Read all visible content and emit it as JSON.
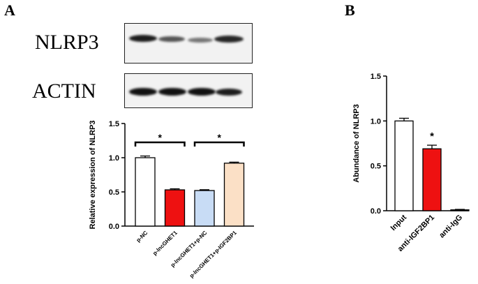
{
  "panels": {
    "a_letter": "A",
    "b_letter": "B"
  },
  "blots": [
    {
      "label": "NLRP3",
      "band_intensity": [
        0.95,
        0.7,
        0.55,
        0.9
      ]
    },
    {
      "label": "ACTIN",
      "band_intensity": [
        1.0,
        1.0,
        1.0,
        0.95
      ]
    }
  ],
  "colors": {
    "white": "#ffffff",
    "red": "#ee1111",
    "light_blue": "#c8dcf5",
    "peach": "#fbe0c6",
    "axis": "#000000"
  },
  "chart_data": [
    {
      "type": "bar",
      "panel": "A",
      "categories": [
        "p-NC",
        "p-lncGHET1",
        "p-lncGHET1+p-NC",
        "p-lncGHET1+p-IGF2BP1"
      ],
      "values": [
        1.0,
        0.53,
        0.52,
        0.92
      ],
      "errors": [
        0.025,
        0.015,
        0.012,
        0.015
      ],
      "bar_colors": [
        "#ffffff",
        "#ee1111",
        "#c8dcf5",
        "#fbe0c6"
      ],
      "ylabel": "Relative expression of NLRP3",
      "xlabel": "",
      "ylim": [
        0,
        1.5
      ],
      "yticks": [
        "0.0",
        "0.5",
        "1.0",
        "1.5"
      ],
      "significance": [
        {
          "from": 0,
          "to": 1,
          "label": "*"
        },
        {
          "from": 2,
          "to": 3,
          "label": "*"
        }
      ]
    },
    {
      "type": "bar",
      "panel": "B",
      "categories": [
        "Input",
        "anti-IGF2BP1",
        "anti-IgG"
      ],
      "values": [
        1.0,
        0.69,
        0.01
      ],
      "errors": [
        0.03,
        0.04,
        0.005
      ],
      "bar_colors": [
        "#ffffff",
        "#ee1111",
        "#ffffff"
      ],
      "ylabel": "Abundance of NLRP3",
      "xlabel": "",
      "ylim": [
        0,
        1.5
      ],
      "yticks": [
        "0.0",
        "0.5",
        "1.0",
        "1.5"
      ],
      "annotations": [
        {
          "bar": 1,
          "label": "*"
        }
      ]
    }
  ]
}
